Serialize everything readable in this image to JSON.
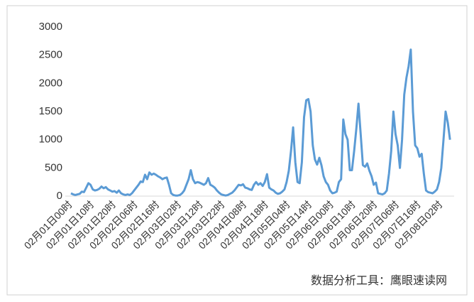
{
  "chart_data": {
    "type": "line",
    "categories": [
      "02月01日00时",
      null,
      null,
      null,
      null,
      null,
      null,
      null,
      null,
      null,
      "02月01日10时",
      null,
      null,
      null,
      null,
      null,
      null,
      null,
      null,
      null,
      "02月01日20时",
      null,
      null,
      null,
      null,
      null,
      null,
      null,
      null,
      null,
      "02月02日06时",
      null,
      null,
      null,
      null,
      null,
      null,
      null,
      null,
      null,
      "02月02日16时",
      null,
      null,
      null,
      null,
      null,
      null,
      null,
      null,
      null,
      "02月03日02时",
      null,
      null,
      null,
      null,
      null,
      null,
      null,
      null,
      null,
      "02月03日12时",
      null,
      null,
      null,
      null,
      null,
      null,
      null,
      null,
      null,
      "02月03日22时",
      null,
      null,
      null,
      null,
      null,
      null,
      null,
      null,
      null,
      "02月04日08时",
      null,
      null,
      null,
      null,
      null,
      null,
      null,
      null,
      null,
      "02月04日18时",
      null,
      null,
      null,
      null,
      null,
      null,
      null,
      null,
      null,
      "02月05日04时",
      null,
      null,
      null,
      null,
      null,
      null,
      null,
      null,
      null,
      "02月05日14时",
      null,
      null,
      null,
      null,
      null,
      null,
      null,
      null,
      null,
      "02月06日00时",
      null,
      null,
      null,
      null,
      null,
      null,
      null,
      null,
      null,
      "02月06日10时",
      null,
      null,
      null,
      null,
      null,
      null,
      null,
      null,
      null,
      "02月06日20时",
      null,
      null,
      null,
      null,
      null,
      null,
      null,
      null,
      null,
      "02月07日06时",
      null,
      null,
      null,
      null,
      null,
      null,
      null,
      null,
      null,
      "02月07日16时",
      null,
      null,
      null,
      null,
      null,
      null,
      null,
      null,
      null,
      "02月08日02时",
      null,
      null,
      null,
      null
    ],
    "values": [
      50,
      30,
      20,
      30,
      40,
      80,
      70,
      150,
      230,
      200,
      120,
      100,
      110,
      130,
      170,
      140,
      160,
      120,
      100,
      80,
      90,
      60,
      100,
      50,
      30,
      20,
      30,
      20,
      50,
      100,
      150,
      200,
      260,
      250,
      380,
      300,
      420,
      380,
      400,
      380,
      350,
      330,
      300,
      320,
      330,
      200,
      50,
      20,
      10,
      10,
      20,
      50,
      100,
      200,
      300,
      460,
      300,
      230,
      250,
      240,
      220,
      200,
      230,
      320,
      200,
      180,
      150,
      100,
      60,
      30,
      20,
      10,
      20,
      40,
      60,
      100,
      150,
      200,
      190,
      210,
      150,
      140,
      120,
      110,
      200,
      250,
      200,
      230,
      180,
      250,
      390,
      150,
      120,
      100,
      60,
      40,
      50,
      80,
      120,
      250,
      450,
      800,
      1220,
      600,
      250,
      230,
      600,
      1400,
      1700,
      1720,
      1500,
      900,
      650,
      560,
      680,
      550,
      350,
      250,
      200,
      100,
      50,
      60,
      80,
      250,
      300,
      1360,
      1100,
      1000,
      460,
      460,
      800,
      1200,
      1640,
      1100,
      550,
      520,
      580,
      450,
      350,
      200,
      240,
      50,
      40,
      30,
      50,
      100,
      400,
      800,
      1500,
      1100,
      900,
      500,
      1000,
      1800,
      2100,
      2300,
      2600,
      1500,
      900,
      850,
      700,
      750,
      400,
      100,
      70,
      60,
      50,
      80,
      120,
      250,
      500,
      1000,
      1500,
      1300,
      1000
    ],
    "color": "#5b9bd5",
    "ylim": [
      0,
      3000
    ],
    "yticks": [
      0,
      500,
      1000,
      1500,
      2000,
      2500,
      3000
    ],
    "annotation": "数据分析工具：鹰眼速读网"
  }
}
